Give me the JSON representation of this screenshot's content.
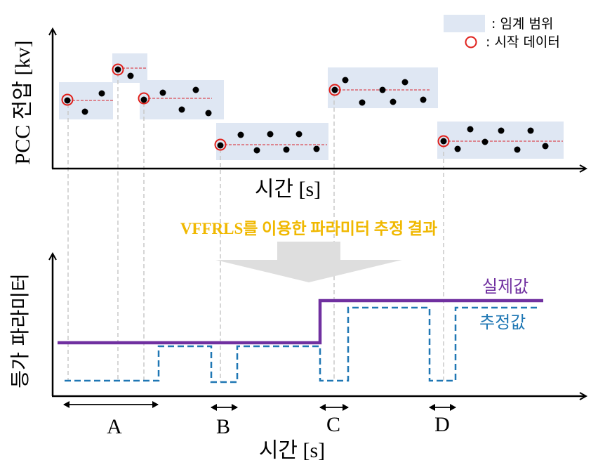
{
  "top_chart": {
    "ylabel": "PCC 전압 [kv]",
    "xlabel": "시간 [s]"
  },
  "legend": {
    "range_label": ": 임계 범위",
    "start_label": ": 시작 데이터"
  },
  "banner": "VFFRLS를 이용한 파라미터 추정 결과",
  "bottom_chart": {
    "ylabel": "등가 파라미터",
    "xlabel": "시간 [s]",
    "actual_label": "실제값",
    "estimated_label": "추정값",
    "intervals": [
      "A",
      "B",
      "C",
      "D"
    ]
  },
  "colors": {
    "range_fill": "#dfe7f3",
    "start_marker": "#e0201b",
    "threshold_line": "#d9232b",
    "actual": "#7030a0",
    "estimated": "#1f77b4",
    "banner": "#f0b800",
    "guide": "#c8c8c8"
  }
}
